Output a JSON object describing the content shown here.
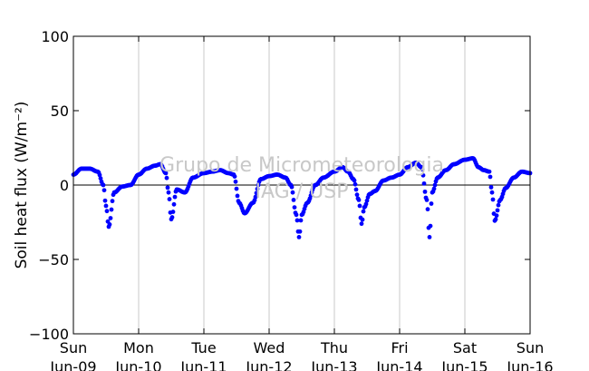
{
  "chart_data": {
    "type": "scatter",
    "title": "",
    "ylabel": "Soil heat flux (W/m⁻²)",
    "xlabel": "",
    "ylim": [
      -100,
      100
    ],
    "xlim": [
      "2016-06-09T00:00",
      "2016-06-16T00:00"
    ],
    "y_ticks": [
      "100",
      "50",
      "0",
      "−50",
      "−100"
    ],
    "x_ticks": [
      {
        "day": "Sun",
        "date": "Jun-09"
      },
      {
        "day": "Mon",
        "date": "Jun-10"
      },
      {
        "day": "Tue",
        "date": "Jun-11"
      },
      {
        "day": "Wed",
        "date": "Jun-12"
      },
      {
        "day": "Thu",
        "date": "Jun-13"
      },
      {
        "day": "Fri",
        "date": "Jun-14"
      },
      {
        "day": "Sat",
        "date": "Jun-15"
      },
      {
        "day": "Sun",
        "date": "Jun-16"
      }
    ],
    "grid": "vertical",
    "zero_line": true,
    "series_color": "#0000ff",
    "watermark": [
      "Grupo de Micrometeorologia",
      "IAG / USP"
    ],
    "series": [
      {
        "x": [
          "2016-06-09T00:00",
          "2016-06-09T03:00",
          "2016-06-09T06:00",
          "2016-06-09T09:00",
          "2016-06-09T11:00",
          "2016-06-09T12:00",
          "2016-06-09T13:00",
          "2016-06-09T15:00",
          "2016-06-09T18:00",
          "2016-06-09T21:00",
          "2016-06-10T00:00",
          "2016-06-10T03:00",
          "2016-06-10T06:00",
          "2016-06-10T08:00",
          "2016-06-10T10:00",
          "2016-06-10T11:00",
          "2016-06-10T12:00",
          "2016-06-10T14:00",
          "2016-06-10T17:00",
          "2016-06-10T20:00",
          "2016-06-11T00:00",
          "2016-06-11T03:00",
          "2016-06-11T06:00",
          "2016-06-11T09:00",
          "2016-06-11T11:00",
          "2016-06-11T13:00",
          "2016-06-11T15:00",
          "2016-06-11T18:00",
          "2016-06-11T21:00",
          "2016-06-12T00:00",
          "2016-06-12T03:00",
          "2016-06-12T06:00",
          "2016-06-12T08:00",
          "2016-06-12T10:00",
          "2016-06-12T11:00",
          "2016-06-12T12:00",
          "2016-06-12T14:00",
          "2016-06-12T17:00",
          "2016-06-12T20:00",
          "2016-06-13T00:00",
          "2016-06-13T03:00",
          "2016-06-13T05:00",
          "2016-06-13T07:00",
          "2016-06-13T09:00",
          "2016-06-13T10:00",
          "2016-06-13T11:00",
          "2016-06-13T13:00",
          "2016-06-13T15:00",
          "2016-06-13T18:00",
          "2016-06-13T21:00",
          "2016-06-14T00:00",
          "2016-06-14T03:00",
          "2016-06-14T06:00",
          "2016-06-14T08:00",
          "2016-06-14T10:00",
          "2016-06-14T11:00",
          "2016-06-14T12:00",
          "2016-06-14T14:00",
          "2016-06-14T17:00",
          "2016-06-14T20:00",
          "2016-06-15T00:00",
          "2016-06-15T03:00",
          "2016-06-15T05:00",
          "2016-06-15T07:00",
          "2016-06-15T09:00",
          "2016-06-15T10:00",
          "2016-06-15T11:00",
          "2016-06-15T13:00",
          "2016-06-15T15:00",
          "2016-06-15T18:00",
          "2016-06-15T21:00",
          "2016-06-16T00:00"
        ],
        "values": [
          7,
          11,
          11,
          9,
          0,
          -14,
          -28,
          -5,
          -1,
          0,
          7,
          11,
          13,
          14,
          8,
          -5,
          -23,
          -3,
          -5,
          5,
          8,
          9,
          10,
          8,
          7,
          -12,
          -19,
          -12,
          4,
          6,
          7,
          5,
          0,
          -20,
          -35,
          -20,
          -12,
          0,
          5,
          9,
          12,
          9,
          4,
          -10,
          -26,
          -15,
          -6,
          -4,
          3,
          5,
          7,
          12,
          15,
          12,
          -10,
          -35,
          -5,
          5,
          10,
          14,
          17,
          18,
          12,
          10,
          9,
          -5,
          -24,
          -10,
          -2,
          5,
          9,
          8
        ]
      }
    ]
  }
}
